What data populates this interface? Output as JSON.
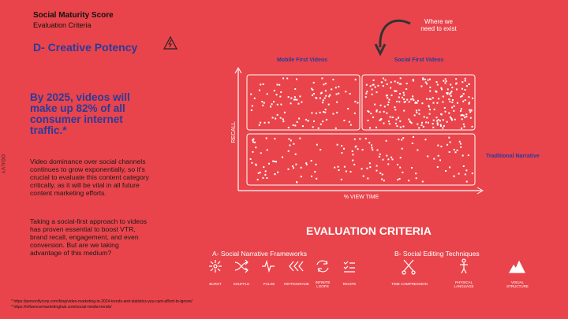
{
  "header": {
    "title": "Social Maturity Score",
    "subtitle": "Evaluation Criteria"
  },
  "section": "D- Creative Potency",
  "brand": "OGILVY",
  "headline": "By 2025, videos will make up 82% of all consumer internet traffic.*",
  "paragraphs": [
    "Video dominance over social channels continues to grow exponentially, so it's crucial to evaluate this content category critically, as it will be vital in all future content marketing efforts.",
    "Taking a social-first approach to videos has proven essential to boost VTR, brand recall, engagement, and even conversion. But are we taking advantage of this medium?"
  ],
  "matrix": {
    "quadrants": [
      "Mobile First Videos",
      "Social First Videos",
      "Traditional Narrative"
    ],
    "y_axis": "RECALL",
    "x_axis": "% VIEW TIME",
    "annotation": "Where we need to exist"
  },
  "criteria": {
    "title": "EVALUATION CRITERIA",
    "groups": [
      {
        "name": "A- Social Narrative Frameworks",
        "items": [
          "BURST",
          "SHUFFLE",
          "PULSE",
          "RETROGRADE",
          "INFINITE LOOPS",
          "RECIPE"
        ]
      },
      {
        "name": "B- Social Editing Techniques",
        "items": [
          "TIME COMPRESSION",
          "PHYSICAL LANGUAGE",
          "VISUAL STRUCTURE"
        ]
      }
    ]
  },
  "footnotes": [
    "* https://pemonifycorp.com/blog/video-marketing-in-2024-trends-and-statistics-you-cant-afford-to-ignore/",
    "* https://influencermarketinghub.com/social-media-trends/"
  ]
}
